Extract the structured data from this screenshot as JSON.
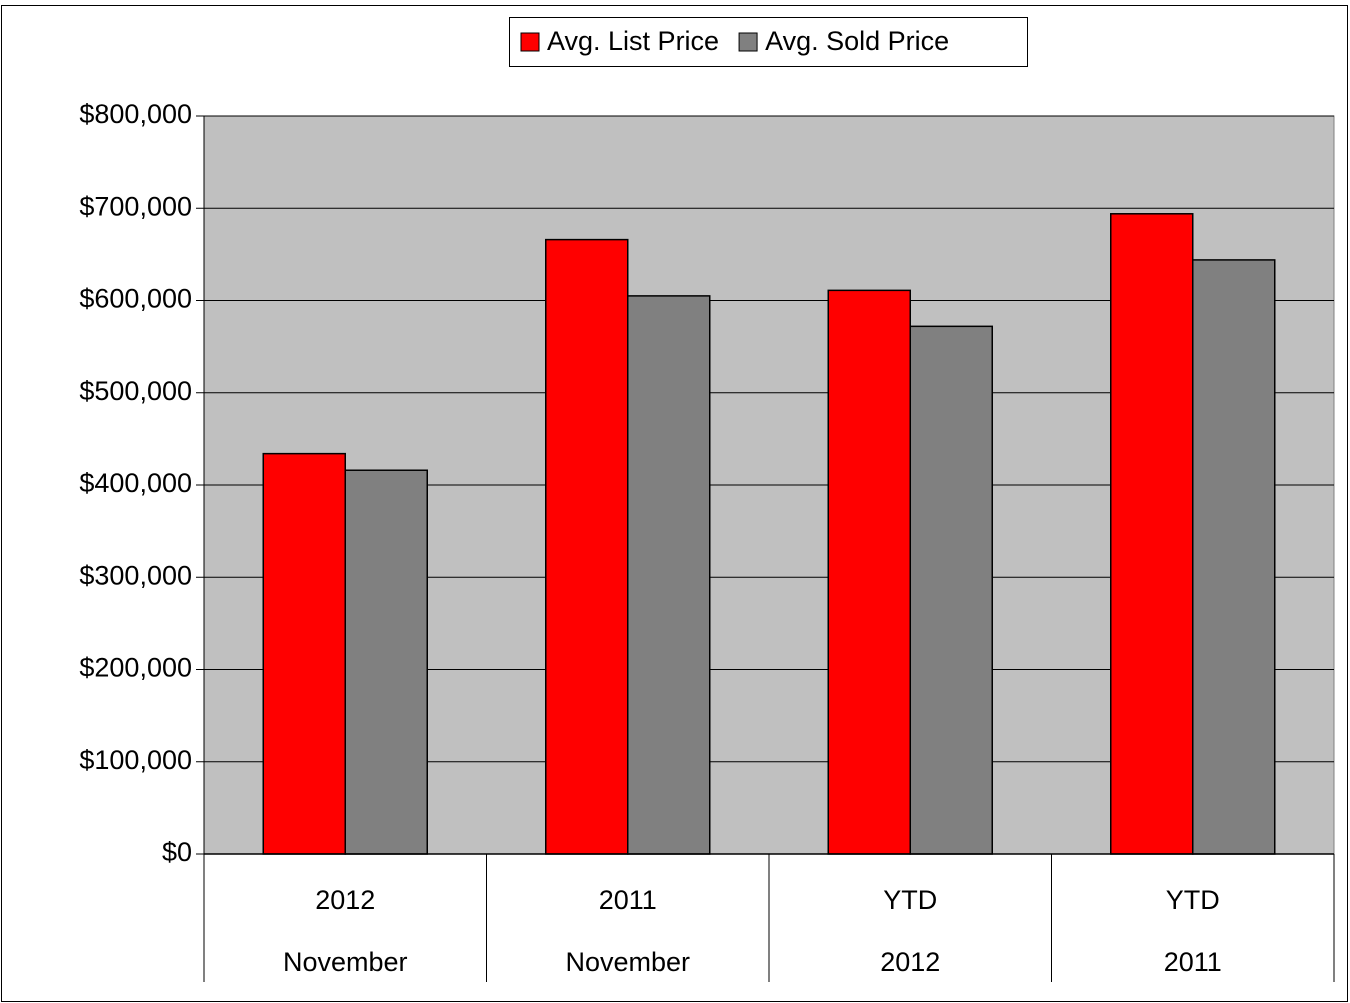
{
  "chart_data": {
    "type": "bar",
    "categories": [
      [
        "2012",
        "November"
      ],
      [
        "2011",
        "November"
      ],
      [
        "YTD",
        "2012"
      ],
      [
        "YTD",
        "2011"
      ]
    ],
    "series": [
      {
        "name": "Avg. List Price",
        "color": "#ff0000",
        "values": [
          434000,
          666000,
          611000,
          694000
        ]
      },
      {
        "name": "Avg. Sold Price",
        "color": "#808080",
        "values": [
          416000,
          605000,
          572000,
          644000
        ]
      }
    ],
    "ylim": [
      0,
      800000
    ],
    "yticks": [
      {
        "value": 0,
        "label": "$0"
      },
      {
        "value": 100000,
        "label": "$100,000"
      },
      {
        "value": 200000,
        "label": "$200,000"
      },
      {
        "value": 300000,
        "label": "$300,000"
      },
      {
        "value": 400000,
        "label": "$400,000"
      },
      {
        "value": 500000,
        "label": "$500,000"
      },
      {
        "value": 600000,
        "label": "$600,000"
      },
      {
        "value": 700000,
        "label": "$700,000"
      },
      {
        "value": 800000,
        "label": "$800,000"
      }
    ],
    "grid": true,
    "legend": "top",
    "plot_background": "#c0c0c0"
  }
}
